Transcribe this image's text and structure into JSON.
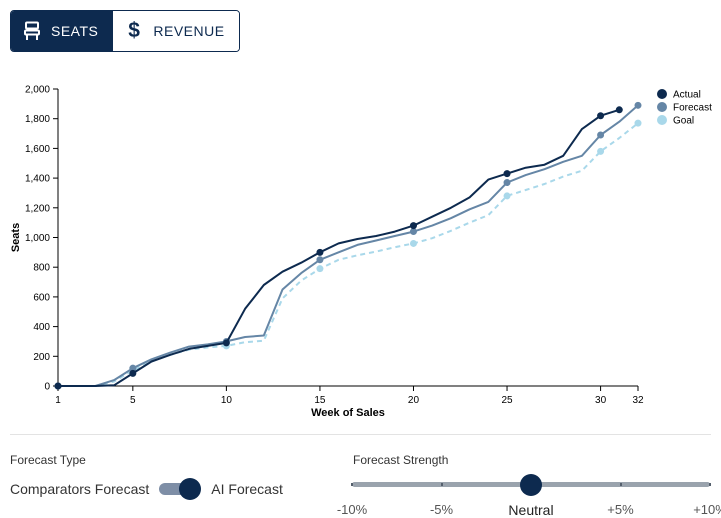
{
  "toggle": {
    "seats_label": "SEATS",
    "revenue_label": "REVENUE",
    "active": "seats",
    "seats_icon": "seat-icon",
    "revenue_icon": "dollar-icon",
    "revenue_glyph": "$"
  },
  "chart_data": {
    "type": "line",
    "xlabel": "Week of Sales",
    "ylabel": "Seats",
    "xlim": [
      1,
      32
    ],
    "ylim": [
      0,
      2000
    ],
    "x_ticks": [
      1,
      5,
      10,
      15,
      20,
      25,
      30,
      32
    ],
    "y_ticks": [
      0,
      200,
      400,
      600,
      800,
      1000,
      1200,
      1400,
      1600,
      1800,
      2000
    ],
    "y_tick_labels": [
      "0",
      "200",
      "400",
      "600",
      "800",
      "1,000",
      "1,200",
      "1,400",
      "1,600",
      "1,800",
      "2,000"
    ],
    "legend_position": "top-right",
    "series": [
      {
        "name": "Actual",
        "color": "#0d2a4f",
        "dashed": false,
        "x": [
          1,
          2,
          3,
          4,
          5,
          6,
          7,
          8,
          9,
          10,
          11,
          12,
          13,
          14,
          15,
          16,
          17,
          18,
          19,
          20,
          21,
          22,
          23,
          24,
          25,
          26,
          27,
          28,
          29,
          30,
          31
        ],
        "y": [
          0,
          0,
          0,
          5,
          85,
          165,
          210,
          250,
          270,
          290,
          520,
          680,
          770,
          830,
          900,
          960,
          990,
          1010,
          1040,
          1080,
          1140,
          1200,
          1270,
          1390,
          1430,
          1470,
          1490,
          1550,
          1730,
          1820,
          1860
        ],
        "markers_at": [
          1,
          5,
          10,
          15,
          20,
          25,
          30,
          31
        ]
      },
      {
        "name": "Forecast",
        "color": "#6586a6",
        "dashed": false,
        "x": [
          1,
          2,
          3,
          4,
          5,
          6,
          7,
          8,
          9,
          10,
          11,
          12,
          13,
          14,
          15,
          16,
          17,
          18,
          19,
          20,
          21,
          22,
          23,
          24,
          25,
          26,
          27,
          28,
          29,
          30,
          31,
          32
        ],
        "y": [
          0,
          0,
          0,
          40,
          120,
          180,
          225,
          265,
          280,
          300,
          330,
          340,
          650,
          760,
          850,
          900,
          950,
          980,
          1010,
          1040,
          1080,
          1130,
          1190,
          1240,
          1370,
          1420,
          1460,
          1510,
          1550,
          1690,
          1780,
          1890
        ],
        "markers_at": [
          1,
          5,
          10,
          15,
          20,
          25,
          30,
          32
        ]
      },
      {
        "name": "Goal",
        "color": "#a9d8ea",
        "dashed": true,
        "x": [
          1,
          2,
          3,
          4,
          5,
          6,
          7,
          8,
          9,
          10,
          11,
          12,
          13,
          14,
          15,
          16,
          17,
          18,
          19,
          20,
          21,
          22,
          23,
          24,
          25,
          26,
          27,
          28,
          29,
          30,
          31,
          32
        ],
        "y": [
          0,
          0,
          0,
          30,
          105,
          165,
          210,
          245,
          260,
          270,
          295,
          305,
          590,
          710,
          790,
          850,
          880,
          905,
          935,
          960,
          995,
          1045,
          1100,
          1150,
          1280,
          1320,
          1360,
          1410,
          1450,
          1580,
          1670,
          1770
        ],
        "markers_at": [
          1,
          5,
          10,
          15,
          20,
          25,
          30,
          32
        ]
      }
    ]
  },
  "forecast_type": {
    "label": "Forecast Type",
    "option_left": "Comparators Forecast",
    "option_right": "AI Forecast",
    "selected": "AI Forecast"
  },
  "forecast_strength": {
    "label": "Forecast Strength",
    "options": [
      "-10%",
      "-5%",
      "Neutral",
      "+5%",
      "+10%"
    ],
    "selected": "Neutral"
  }
}
